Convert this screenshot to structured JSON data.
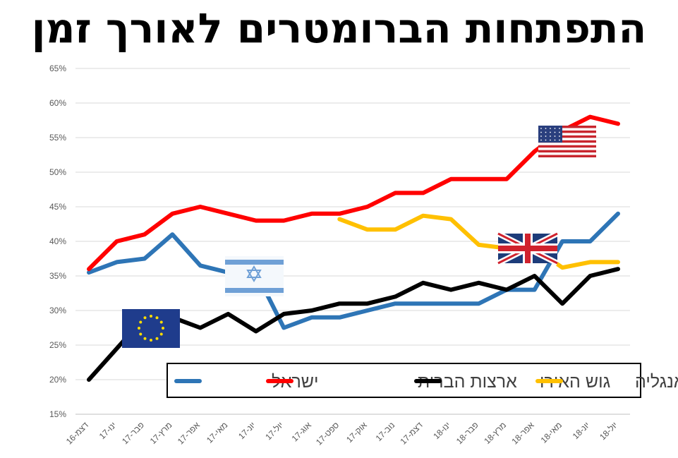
{
  "chart_data": {
    "type": "line",
    "title": "התפתחות הברומטרים לאורך זמן",
    "x": [
      "דצמ-16",
      "ינו-17",
      "פבר-17",
      "מרץ-17",
      "אפר-17",
      "מאי-17",
      "יונ-17",
      "יול-17",
      "אוג-17",
      "ספט-17",
      "אוק-17",
      "נוב-17",
      "דצמ-17",
      "ינו-18",
      "פבר-18",
      "מרץ-18",
      "אפר-18",
      "מאי-18",
      "יונ-18",
      "יול-18"
    ],
    "y_ticks": [
      "15%",
      "20%",
      "25%",
      "30%",
      "35%",
      "40%",
      "45%",
      "50%",
      "55%",
      "60%",
      "65%"
    ],
    "ylim": [
      15,
      65
    ],
    "y_unit": "%",
    "grid": true,
    "legend_position": "bottom-right",
    "series": [
      {
        "name": "ישראל",
        "color": "#2E75B6",
        "values": [
          35.5,
          37,
          37.5,
          41,
          36.5,
          35.5,
          35.5,
          27.5,
          29,
          29,
          30,
          31,
          31,
          31,
          31,
          33,
          33,
          40,
          40,
          44
        ]
      },
      {
        "name": "ארצות הברית",
        "color": "#FF0000",
        "values": [
          36,
          40,
          41,
          44,
          45,
          44,
          43,
          43,
          44,
          44,
          45,
          47,
          47,
          49,
          49,
          49,
          53,
          56,
          58,
          57
        ]
      },
      {
        "name": "גוש האירו",
        "color": "#000000",
        "values": [
          20,
          24.5,
          29,
          29,
          27.5,
          29.5,
          27,
          29.5,
          30,
          31,
          31,
          32,
          34,
          33,
          34,
          33,
          35,
          31,
          35,
          36
        ]
      },
      {
        "name": "אנגליה",
        "color": "#FFC000",
        "values": [
          null,
          null,
          null,
          null,
          null,
          null,
          null,
          null,
          null,
          43.2,
          41.7,
          41.7,
          43.7,
          43.2,
          39.5,
          39,
          39,
          36.2,
          37,
          37
        ]
      }
    ],
    "flags": [
      {
        "icon": "eu-flag-icon",
        "near_series": "גוש האירו"
      },
      {
        "icon": "israel-flag-icon",
        "near_series": "ישראל"
      },
      {
        "icon": "uk-flag-icon",
        "near_series": "אנגליה"
      },
      {
        "icon": "usa-flag-icon",
        "near_series": "ארצות הברית"
      }
    ]
  }
}
